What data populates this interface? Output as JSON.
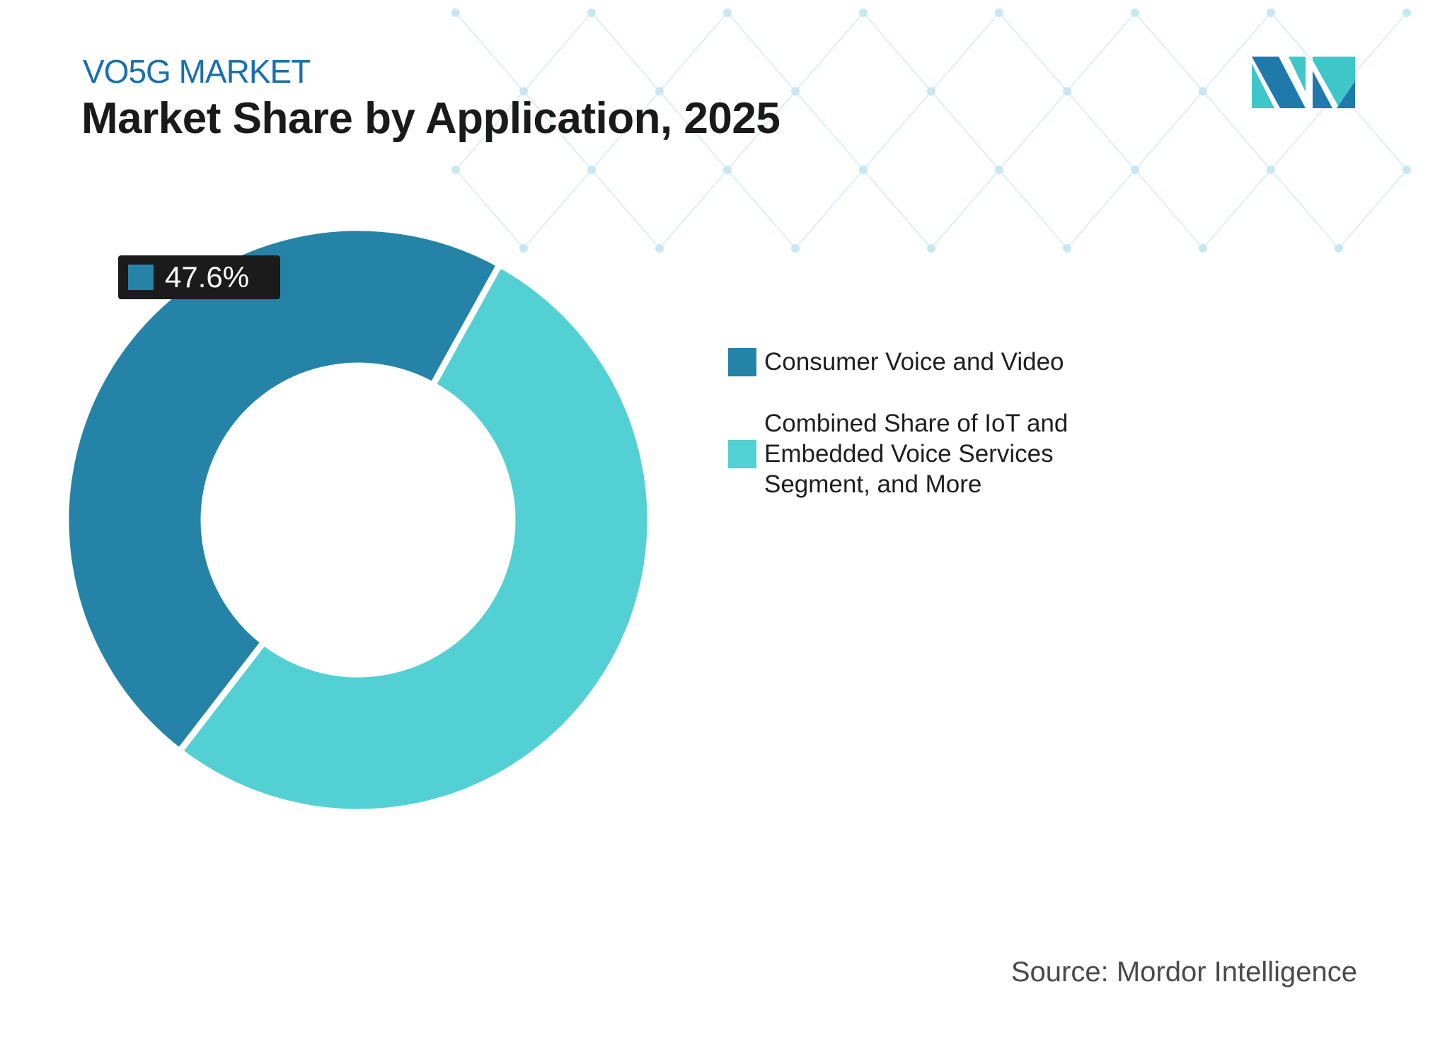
{
  "header": {
    "subtitle": "VO5G MARKET",
    "title": "Market Share by Application, 2025"
  },
  "chart_data": {
    "type": "pie",
    "variant": "donut",
    "title": "Market Share by Application, 2025",
    "categories": [
      "Consumer Voice and Video",
      "Combined Share of IoT and Embedded Voice Services Segment, and More"
    ],
    "values": [
      47.6,
      52.4
    ],
    "unit": "%",
    "colors": [
      "#2683a8",
      "#52d0d3"
    ],
    "data_labels": [
      {
        "category": "Consumer Voice and Video",
        "text": "47.6%"
      }
    ],
    "legend_position": "right"
  },
  "source": "Source: Mordor Intelligence",
  "colors": {
    "subtitle": "#1a6fad",
    "logo_dark": "#1f7aab",
    "logo_light": "#3ec6c9"
  }
}
